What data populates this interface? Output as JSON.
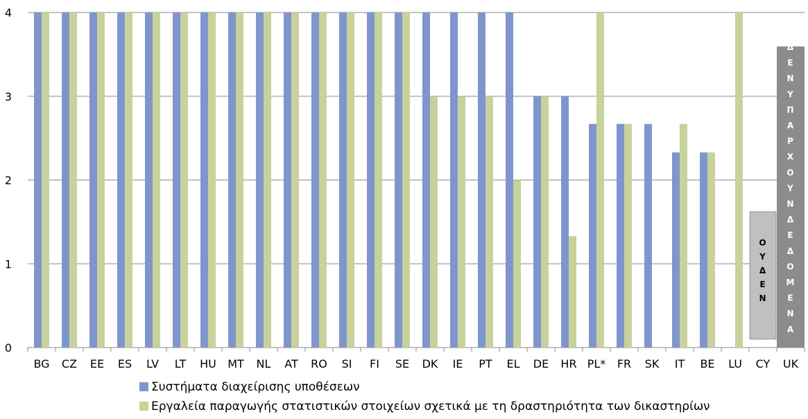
{
  "chart_data": {
    "type": "bar",
    "categories": [
      "BG",
      "CZ",
      "EE",
      "ES",
      "LV",
      "LT",
      "HU",
      "MT",
      "NL",
      "AT",
      "RO",
      "SI",
      "FI",
      "SE",
      "DK",
      "IE",
      "PT",
      "EL",
      "DE",
      "HR",
      "PL*",
      "FR",
      "SK",
      "IT",
      "BE",
      "LU",
      "CY",
      "UK"
    ],
    "series": [
      {
        "name": "Συστήματα διαχείρισης υποθέσεων",
        "color": "#7f96cc",
        "values": [
          4,
          4,
          4,
          4,
          4,
          4,
          4,
          4,
          4,
          4,
          4,
          4,
          4,
          4,
          4,
          4,
          4,
          4,
          3,
          3,
          2.67,
          2.67,
          2.67,
          2.33,
          2.33,
          null,
          null,
          null
        ]
      },
      {
        "name": "Εργαλεία παραγωγής στατιστικών στοιχείων σχετικά με τη δραστηριότητα των δικαστηρίων",
        "color": "#c8d29c",
        "values": [
          4,
          4,
          4,
          4,
          4,
          4,
          4,
          4,
          4,
          4,
          4,
          4,
          4,
          4,
          3,
          3,
          3,
          2,
          3,
          1.33,
          4,
          2.67,
          null,
          2.67,
          2.33,
          4,
          null,
          null
        ]
      }
    ],
    "yticks": [
      "0",
      "1",
      "2",
      "3",
      "4"
    ],
    "ylim": [
      0,
      4
    ],
    "grid": true,
    "legend_position": "bottom",
    "annotations": [
      {
        "category": "CY",
        "label": "ΟΥΔΕΝ",
        "color": "#c0c0c0"
      },
      {
        "category": "UK",
        "label": "ΔΕΝ ΥΠΑΡΧΟΥΝ ΔΕΔΟΜΕΝΑ",
        "color": "#8c8c8c"
      }
    ]
  }
}
